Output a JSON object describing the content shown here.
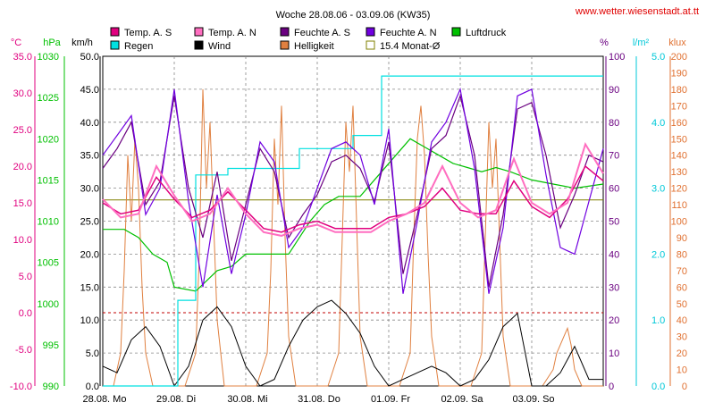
{
  "chart_data": {
    "type": "line",
    "title": "Woche 28.08.06 - 03.09.06 (KW35)",
    "source": "www.wetter.wiesenstadt.at.tt",
    "x_labels": [
      "28.08.  Mo",
      "29.08.  Di",
      "30.08.  Mi",
      "31.08.  Do",
      "01.09.  Fr",
      "02.09.  Sa",
      "03.09.  So"
    ],
    "x_range_days": [
      0,
      7
    ],
    "axes": [
      {
        "unit": "°C",
        "color": "#e0007f",
        "min": -10,
        "max": 35,
        "ticks": [
          "35.0",
          "30.0",
          "25.0",
          "20.0",
          "15.0",
          "10.0",
          "5.0",
          "0.0",
          "-5.0",
          "-10.0"
        ]
      },
      {
        "unit": "hPa",
        "color": "#00c000",
        "min": 990,
        "max": 1030,
        "ticks": [
          "1030",
          "1025",
          "1020",
          "1015",
          "1010",
          "1005",
          "1000",
          "995",
          "990"
        ]
      },
      {
        "unit": "km/h",
        "color": "#000000",
        "min": 0,
        "max": 50,
        "ticks": [
          "50.0",
          "45.0",
          "40.0",
          "35.0",
          "30.0",
          "25.0",
          "20.0",
          "15.0",
          "10.0",
          "5.0",
          "0.0"
        ]
      },
      {
        "unit": "%",
        "color": "#6a0080",
        "min": 0,
        "max": 100,
        "ticks": [
          "100",
          "90",
          "80",
          "70",
          "60",
          "50",
          "40",
          "30",
          "20",
          "10",
          "0"
        ]
      },
      {
        "unit": "l/m²",
        "color": "#00c8d8",
        "min": 0,
        "max": 5,
        "ticks": [
          "5.0",
          "4.0",
          "3.0",
          "2.0",
          "1.0",
          "0.0"
        ]
      },
      {
        "unit": "klux",
        "color": "#e07030",
        "min": 0,
        "max": 200,
        "ticks": [
          "200",
          "190",
          "180",
          "170",
          "160",
          "150",
          "140",
          "130",
          "120",
          "110",
          "100",
          "90",
          "80",
          "70",
          "60",
          "50",
          "40",
          "30",
          "20",
          "10",
          "0"
        ]
      }
    ],
    "legend": [
      {
        "name": "Temp. A. S",
        "color": "#e0007f"
      },
      {
        "name": "Temp. A. N",
        "color": "#ff6ec0"
      },
      {
        "name": "Feuchte A. S",
        "color": "#6a0080"
      },
      {
        "name": "Feuchte A. N",
        "color": "#7000e0"
      },
      {
        "name": "Luftdruck",
        "color": "#00c000"
      },
      {
        "name": "Regen",
        "color": "#00e0e0"
      },
      {
        "name": "Wind",
        "color": "#000000"
      },
      {
        "name": "Helligkeit",
        "color": "#e08040"
      },
      {
        "name": "15.4 Monat-Ø",
        "color": "#808000"
      }
    ],
    "reference_line": {
      "name": "15.4 Monat-Ø",
      "value_c": 15.4,
      "color": "#808000"
    },
    "frost_line": {
      "value_c": 0,
      "color": "#c00000"
    },
    "series": {
      "temp_s": {
        "x": [
          0,
          0.25,
          0.5,
          0.75,
          1,
          1.25,
          1.5,
          1.75,
          2,
          2.25,
          2.5,
          2.75,
          3,
          3.25,
          3.5,
          3.75,
          4,
          4.25,
          4.5,
          4.75,
          5,
          5.25,
          5.5,
          5.75,
          6,
          6.25,
          6.5,
          6.75,
          7
        ],
        "y": [
          15,
          13.5,
          14,
          18.5,
          15.5,
          13,
          14,
          16.5,
          14,
          11.5,
          11,
          12,
          12.5,
          11.5,
          11.5,
          11.5,
          13,
          13.5,
          14.5,
          17,
          14,
          13.5,
          13.5,
          18,
          14.5,
          13,
          15.5,
          20,
          18
        ]
      },
      "temp_n": {
        "x": [
          0,
          0.25,
          0.5,
          0.75,
          1,
          1.25,
          1.5,
          1.75,
          2,
          2.25,
          2.5,
          2.75,
          3,
          3.25,
          3.5,
          3.75,
          4,
          4.25,
          4.5,
          4.75,
          5,
          5.25,
          5.5,
          5.75,
          6,
          6.25,
          6.5,
          6.75,
          7
        ],
        "y": [
          15.5,
          13,
          13.5,
          20,
          16,
          12.5,
          13.5,
          17,
          13.5,
          11,
          10.5,
          11.5,
          12,
          11,
          11,
          11,
          12.5,
          13.5,
          15,
          20,
          15,
          13,
          14,
          21,
          15,
          13.5,
          15,
          23,
          19
        ]
      },
      "hum_s": {
        "x": [
          0,
          0.2,
          0.4,
          0.6,
          0.8,
          1,
          1.2,
          1.4,
          1.6,
          1.8,
          2,
          2.2,
          2.4,
          2.6,
          2.8,
          3,
          3.2,
          3.4,
          3.6,
          3.8,
          4,
          4.2,
          4.4,
          4.6,
          4.8,
          5,
          5.2,
          5.4,
          5.6,
          5.8,
          6,
          6.2,
          6.4,
          6.6,
          6.8,
          7
        ],
        "y": [
          66,
          72,
          80,
          55,
          62,
          88,
          60,
          45,
          65,
          38,
          55,
          72,
          65,
          45,
          52,
          58,
          68,
          70,
          66,
          56,
          74,
          34,
          52,
          72,
          76,
          88,
          70,
          30,
          52,
          84,
          86,
          70,
          48,
          58,
          70,
          68
        ]
      },
      "hum_n": {
        "x": [
          0,
          0.2,
          0.4,
          0.6,
          0.8,
          1,
          1.2,
          1.4,
          1.6,
          1.8,
          2,
          2.2,
          2.4,
          2.6,
          2.8,
          3,
          3.2,
          3.4,
          3.6,
          3.8,
          4,
          4.2,
          4.4,
          4.6,
          4.8,
          5,
          5.2,
          5.4,
          5.6,
          5.8,
          6,
          6.2,
          6.4,
          6.6,
          6.8,
          7
        ],
        "y": [
          70,
          76,
          82,
          52,
          60,
          90,
          56,
          30,
          58,
          34,
          52,
          74,
          68,
          42,
          48,
          60,
          72,
          74,
          70,
          55,
          78,
          28,
          50,
          74,
          80,
          90,
          66,
          28,
          48,
          88,
          90,
          64,
          42,
          40,
          56,
          72
        ]
      },
      "pressure": {
        "x": [
          0,
          0.3,
          0.5,
          0.7,
          0.9,
          1,
          1.3,
          1.6,
          1.8,
          2,
          2.3,
          2.6,
          2.9,
          3.1,
          3.3,
          3.6,
          3.9,
          4.1,
          4.3,
          4.5,
          4.7,
          4.9,
          5.1,
          5.3,
          5.5,
          5.7,
          6,
          6.3,
          6.6,
          7
        ],
        "y": [
          1009,
          1009,
          1008,
          1006,
          1005,
          1002,
          1001.5,
          1004,
          1004.5,
          1006,
          1006,
          1006,
          1010,
          1012,
          1013,
          1013,
          1016,
          1018,
          1020,
          1019,
          1018,
          1017,
          1016.5,
          1016,
          1016.5,
          1016,
          1015,
          1014.5,
          1014,
          1014.5
        ]
      },
      "rain": {
        "x": [
          0,
          1.05,
          1.05,
          1.3,
          1.3,
          1.75,
          1.75,
          2.75,
          2.75,
          3.5,
          3.5,
          3.9,
          3.9,
          7
        ],
        "y": [
          0,
          0,
          1.3,
          1.3,
          3.2,
          3.2,
          3.3,
          3.3,
          3.6,
          3.6,
          3.8,
          3.8,
          4.7,
          4.7
        ]
      },
      "wind": {
        "x": [
          0,
          0.2,
          0.4,
          0.6,
          0.8,
          1,
          1.2,
          1.4,
          1.6,
          1.8,
          2,
          2.2,
          2.4,
          2.6,
          2.8,
          3,
          3.2,
          3.4,
          3.6,
          3.8,
          4,
          4.2,
          4.4,
          4.6,
          4.8,
          5,
          5.2,
          5.4,
          5.6,
          5.8,
          6,
          6.2,
          6.4,
          6.6,
          6.8,
          7
        ],
        "y": [
          3,
          2,
          7,
          9,
          6,
          0,
          3,
          10,
          12,
          9,
          3,
          0,
          1,
          6,
          10,
          12,
          13,
          11,
          8,
          3,
          0,
          1,
          2,
          3,
          2,
          0,
          1,
          4,
          9,
          11,
          0,
          0,
          2,
          6,
          1,
          1
        ]
      },
      "light": {
        "x": [
          0,
          0.15,
          0.25,
          0.3,
          0.35,
          0.4,
          0.45,
          0.5,
          0.55,
          0.6,
          0.7,
          0.85,
          1.0,
          1.15,
          1.3,
          1.35,
          1.4,
          1.45,
          1.5,
          1.55,
          1.6,
          1.7,
          1.85,
          2.0,
          2.15,
          2.3,
          2.35,
          2.4,
          2.45,
          2.5,
          2.55,
          2.6,
          2.7,
          2.9,
          3.0,
          3.15,
          3.3,
          3.35,
          3.4,
          3.45,
          3.5,
          3.55,
          3.6,
          3.7,
          3.9,
          4.0,
          4.15,
          4.3,
          4.35,
          4.4,
          4.45,
          4.5,
          4.55,
          4.6,
          4.7,
          4.9,
          5.0,
          5.15,
          5.3,
          5.35,
          5.4,
          5.45,
          5.5,
          5.55,
          5.6,
          5.7,
          5.9,
          6.0,
          6.15,
          6.3,
          6.35,
          6.4,
          6.45,
          6.5,
          6.55,
          6.6,
          6.7,
          7.0
        ],
        "y": [
          0,
          0,
          20,
          70,
          140,
          100,
          150,
          120,
          60,
          20,
          0,
          0,
          0,
          0,
          20,
          80,
          180,
          120,
          160,
          100,
          40,
          0,
          0,
          0,
          0,
          20,
          70,
          150,
          110,
          170,
          90,
          30,
          0,
          0,
          0,
          0,
          20,
          90,
          160,
          130,
          170,
          100,
          30,
          0,
          0,
          0,
          0,
          20,
          90,
          150,
          170,
          140,
          80,
          30,
          0,
          0,
          0,
          0,
          20,
          90,
          160,
          120,
          150,
          90,
          30,
          0,
          0,
          0,
          0,
          10,
          20,
          25,
          30,
          35,
          25,
          10,
          0,
          0
        ]
      }
    }
  }
}
